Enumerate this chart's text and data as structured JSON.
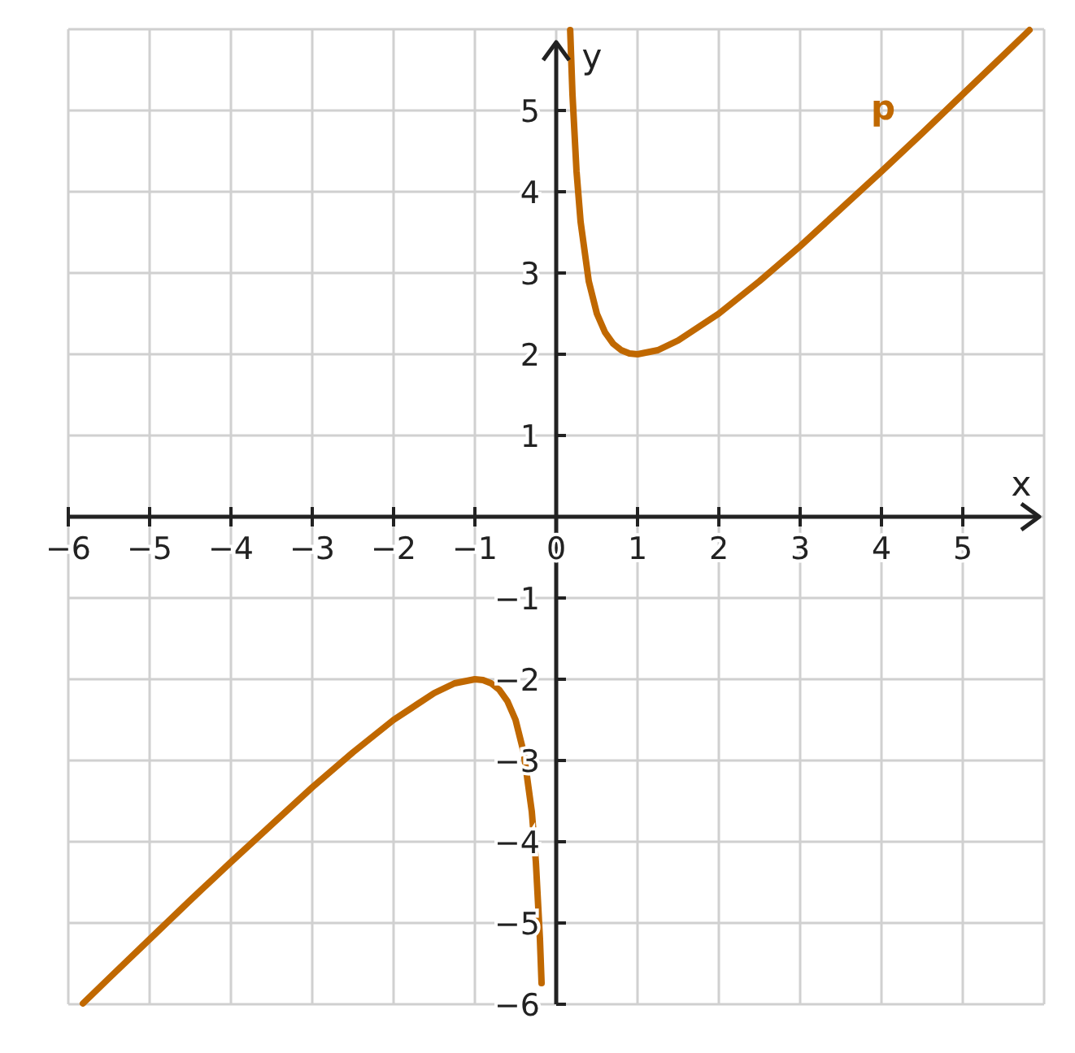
{
  "chart_data": {
    "type": "line",
    "xlabel": "x",
    "ylabel": "y",
    "xlim": [
      -6,
      6
    ],
    "ylim": [
      -6,
      6
    ],
    "xticks": [
      -6,
      -5,
      -4,
      -3,
      -2,
      -1,
      0,
      1,
      2,
      3,
      4,
      5
    ],
    "yticks": [
      -6,
      -5,
      -4,
      -3,
      -2,
      -1,
      1,
      2,
      3,
      4,
      5
    ],
    "grid": true,
    "line_style": "solid",
    "marker": "none",
    "x": [
      -5.82,
      -5.5,
      -5,
      -4.5,
      -4,
      -3.5,
      -3,
      -2.5,
      -2,
      -1.5,
      -1.25,
      -1,
      -0.9,
      -0.8,
      -0.7,
      -0.6,
      -0.5,
      -0.4,
      -0.3,
      -0.25,
      -0.2,
      -0.18,
      0,
      0.172,
      0.2,
      0.25,
      0.3,
      0.4,
      0.5,
      0.6,
      0.7,
      0.8,
      0.9,
      1,
      1.25,
      1.5,
      2,
      2.5,
      3,
      3.5,
      4,
      4.5,
      5,
      5.5,
      5.82
    ],
    "series": [
      {
        "name": "p",
        "color": "#c06800",
        "values": [
          -5.99,
          -5.68,
          -5.2,
          -4.72,
          -4.25,
          -3.79,
          -3.33,
          -2.9,
          -2.5,
          -2.17,
          -2.05,
          -2,
          -2.01,
          -2.05,
          -2.13,
          -2.27,
          -2.5,
          -2.9,
          -3.63,
          -4.25,
          -5.2,
          -5.74,
          null,
          5.99,
          5.2,
          4.25,
          3.63,
          2.9,
          2.5,
          2.27,
          2.13,
          2.05,
          2.01,
          2,
          2.05,
          2.17,
          2.5,
          2.9,
          3.33,
          3.79,
          4.25,
          4.72,
          5.2,
          5.68,
          5.99
        ]
      }
    ]
  }
}
